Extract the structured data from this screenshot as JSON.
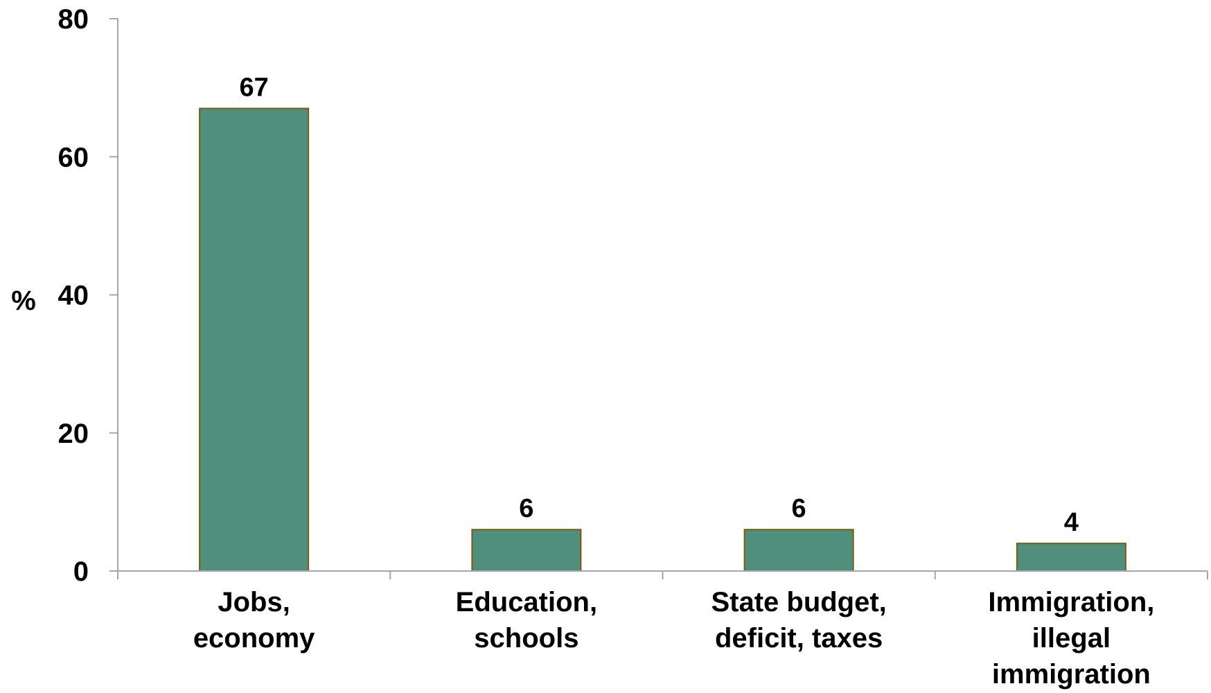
{
  "chart_data": {
    "type": "bar",
    "categories": [
      [
        "Jobs,",
        "economy"
      ],
      [
        "Education,",
        "schools"
      ],
      [
        "State budget,",
        "deficit, taxes"
      ],
      [
        "Immigration,",
        "illegal",
        "immigration"
      ]
    ],
    "values": [
      67,
      6,
      6,
      4
    ],
    "data_labels": [
      "67",
      "6",
      "6",
      "4"
    ],
    "title": "",
    "xlabel": "",
    "ylabel": "%",
    "ylim": [
      0,
      80
    ],
    "yticks": [
      0,
      20,
      40,
      60,
      80
    ],
    "grid": false,
    "legend": "none",
    "colors": {
      "bar_fill": "#4f8f7c",
      "bar_stroke": "#7a5a12",
      "axis": "#a6a6a6"
    }
  }
}
